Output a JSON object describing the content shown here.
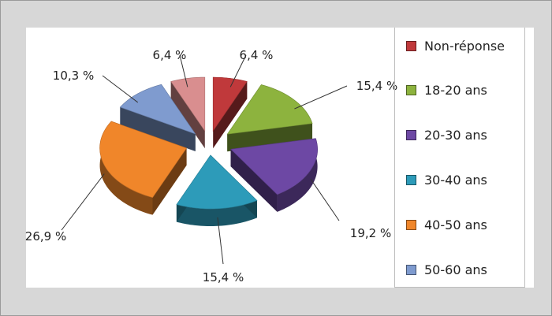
{
  "chart_data": {
    "type": "pie",
    "title": "",
    "legend_position": "right",
    "series": [
      {
        "name": "Non-réponse",
        "value": 6.4,
        "label": "6,4 %",
        "color": "#c0393b"
      },
      {
        "name": "18-20 ans",
        "value": 15.4,
        "label": "15,4 %",
        "color": "#8db33e"
      },
      {
        "name": "20-30 ans",
        "value": 19.2,
        "label": "19,2 %",
        "color": "#6d48a4"
      },
      {
        "name": "30-40 ans",
        "value": 15.4,
        "label": "15,4 %",
        "color": "#2d9bb9"
      },
      {
        "name": "40-50 ans",
        "value": 26.9,
        "label": "26,9 %",
        "color": "#f0862a"
      },
      {
        "name": "50-60 ans",
        "value": 10.3,
        "label": "10,3 %",
        "color": "#7f9bcf"
      },
      {
        "name": "",
        "value": 6.4,
        "label": "6,4 %",
        "color": "#d98e8f"
      }
    ]
  }
}
